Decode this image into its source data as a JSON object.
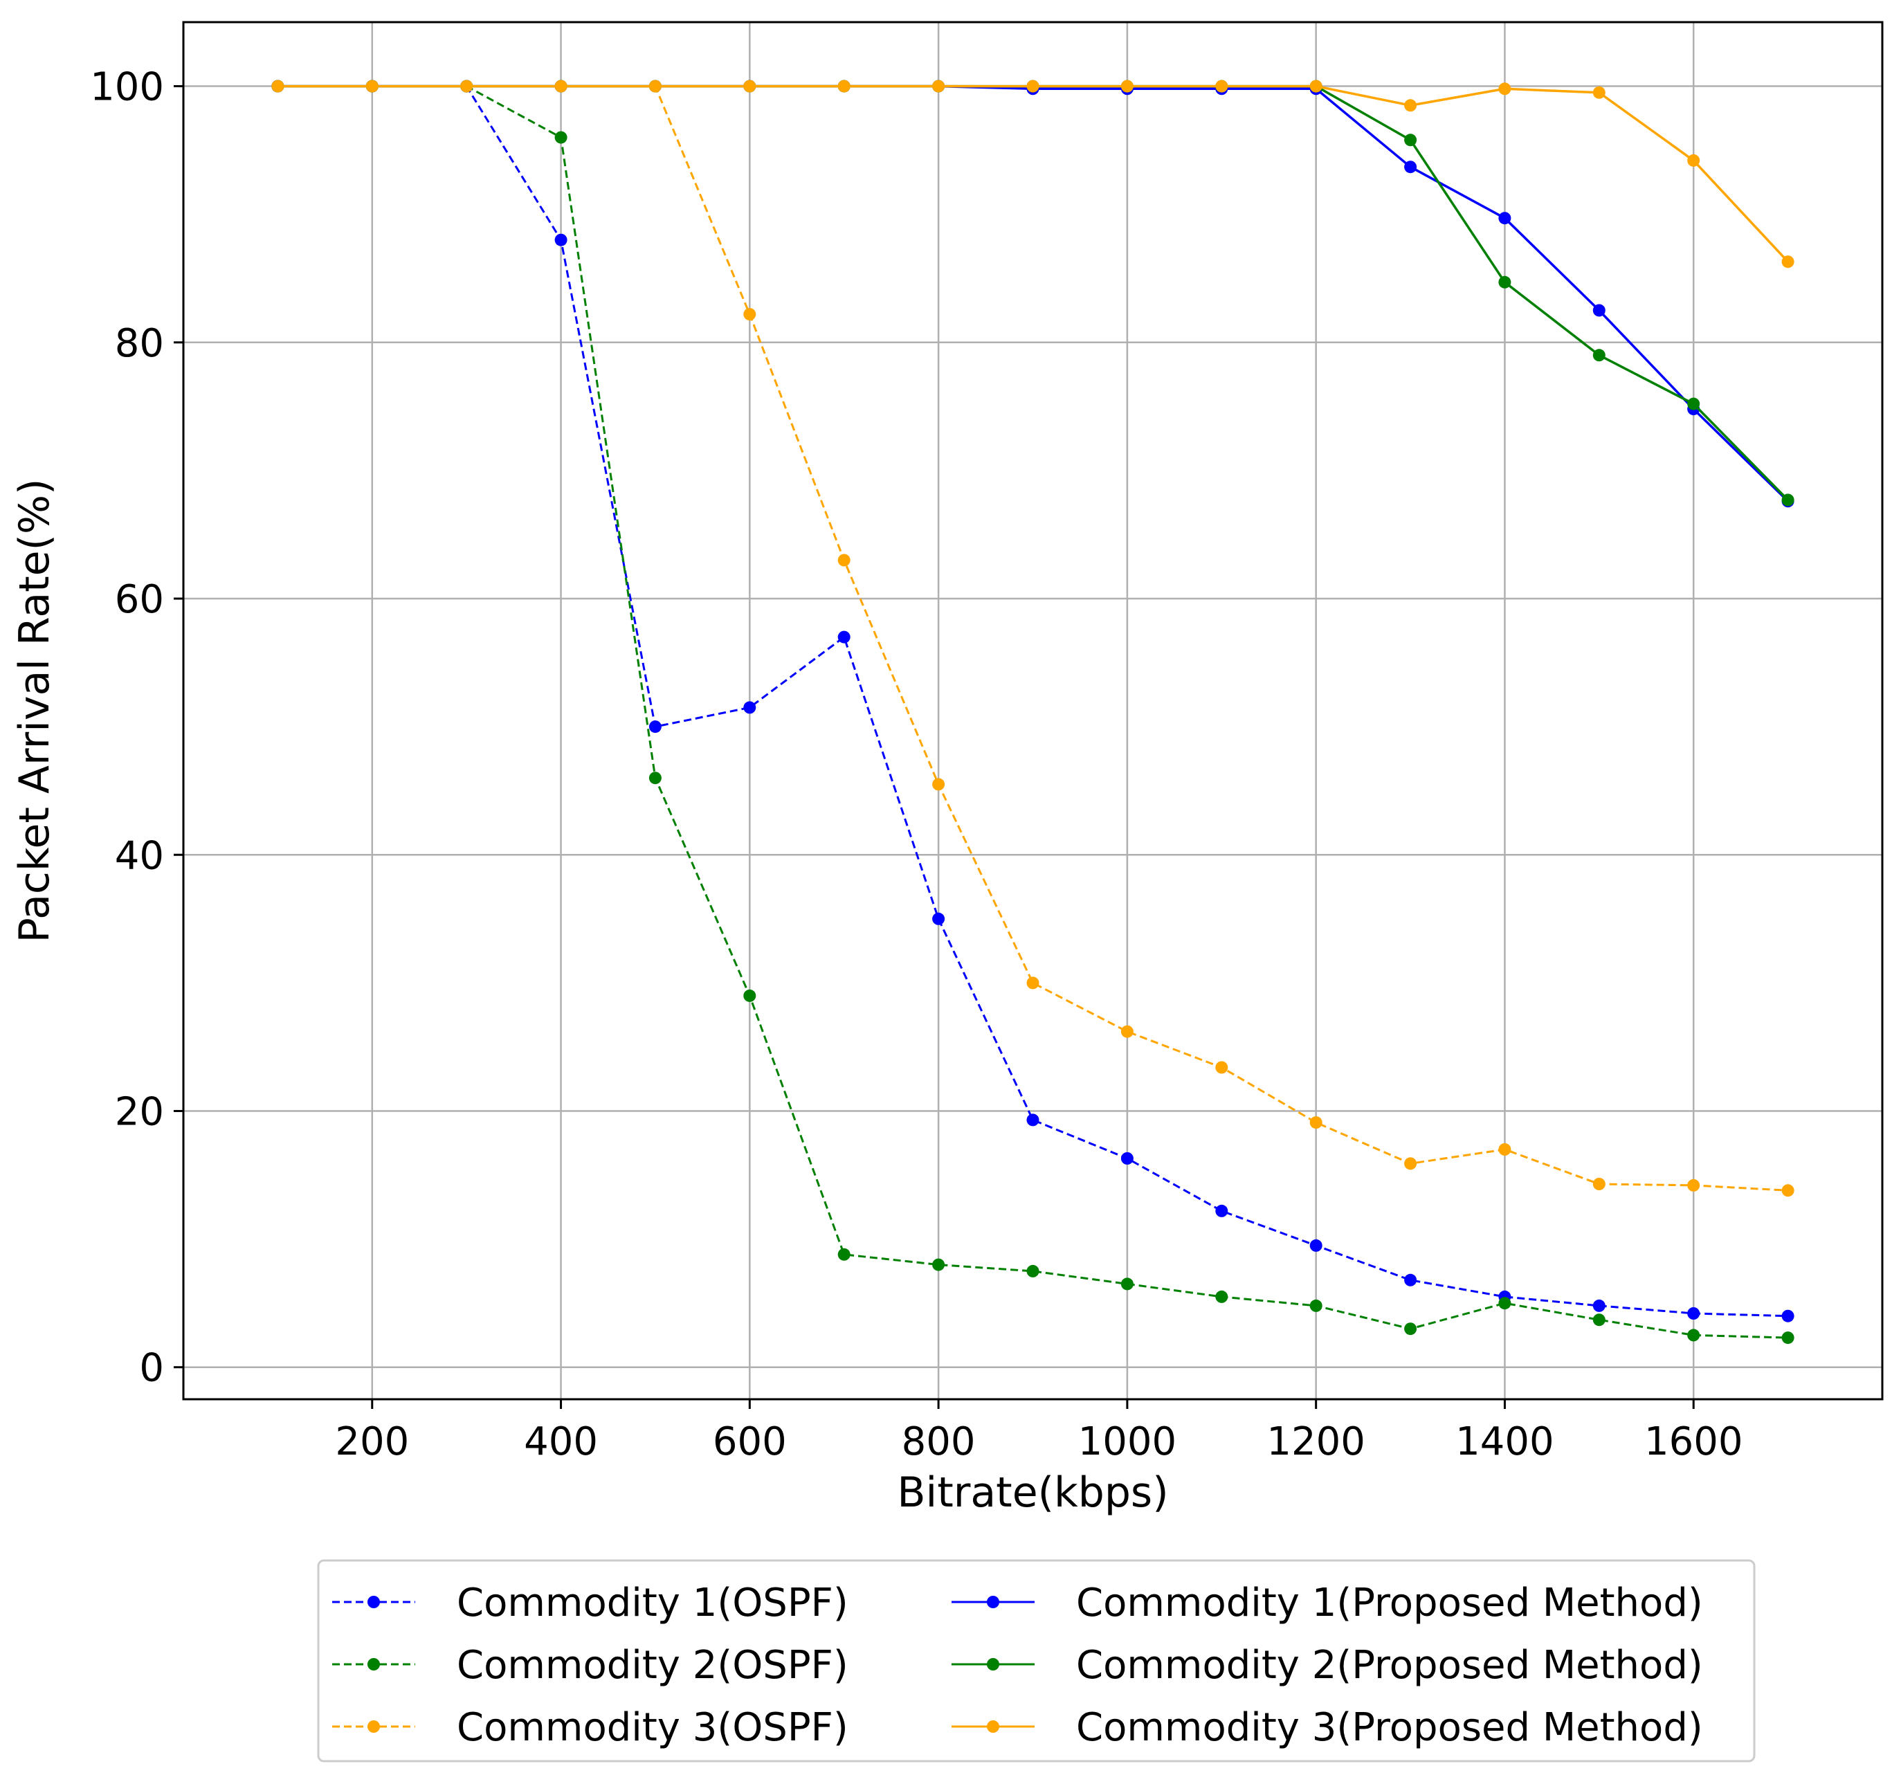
{
  "chart_data": {
    "type": "line",
    "title": "",
    "xlabel": "Bitrate(kbps)",
    "ylabel": "Packet Arrival Rate(%)",
    "xlim": [
      0,
      1800
    ],
    "ylim": [
      -2.5,
      105
    ],
    "grid": true,
    "x_ticks": [
      200,
      400,
      600,
      800,
      1000,
      1200,
      1400,
      1600
    ],
    "y_ticks": [
      0,
      20,
      40,
      60,
      80,
      100
    ],
    "x": [
      100,
      200,
      300,
      400,
      500,
      600,
      700,
      800,
      900,
      1000,
      1100,
      1200,
      1300,
      1400,
      1500,
      1600,
      1700
    ],
    "legend_position": "below",
    "series": [
      {
        "name": "Commodity 1(OSPF)",
        "color": "#0000ff",
        "style": "dashed",
        "values": [
          100,
          100,
          100,
          88,
          50,
          51.5,
          57,
          35,
          19.3,
          16.3,
          12.2,
          9.5,
          6.8,
          5.5,
          4.8,
          4.2,
          4.0
        ]
      },
      {
        "name": "Commodity 2(OSPF)",
        "color": "#008000",
        "style": "dashed",
        "values": [
          100,
          100,
          100,
          96,
          46,
          29,
          8.8,
          8.0,
          7.5,
          6.5,
          5.5,
          4.8,
          3.0,
          5.0,
          3.7,
          2.5,
          2.3
        ]
      },
      {
        "name": "Commodity 3(OSPF)",
        "color": "#ffa500",
        "style": "dashed",
        "values": [
          100,
          100,
          100,
          100,
          100,
          82.2,
          63,
          45.5,
          30,
          26.2,
          23.4,
          19.1,
          15.9,
          17.0,
          14.3,
          14.2,
          13.8
        ]
      },
      {
        "name": "Commodity 1(Proposed Method)",
        "color": "#0000ff",
        "style": "solid",
        "values": [
          100,
          100,
          100,
          100,
          100,
          100,
          100,
          100,
          99.8,
          99.8,
          99.8,
          99.8,
          93.7,
          89.7,
          82.5,
          74.8,
          67.6
        ]
      },
      {
        "name": "Commodity 2(Proposed Method)",
        "color": "#008000",
        "style": "solid",
        "values": [
          100,
          100,
          100,
          100,
          100,
          100,
          100,
          100,
          100,
          100,
          100,
          100,
          95.8,
          84.7,
          79,
          75.2,
          67.7
        ]
      },
      {
        "name": "Commodity 3(Proposed Method)",
        "color": "#ffa500",
        "style": "solid",
        "values": [
          100,
          100,
          100,
          100,
          100,
          100,
          100,
          100,
          100,
          100,
          100,
          100,
          98.5,
          99.8,
          99.5,
          94.2,
          86.3
        ]
      }
    ]
  }
}
